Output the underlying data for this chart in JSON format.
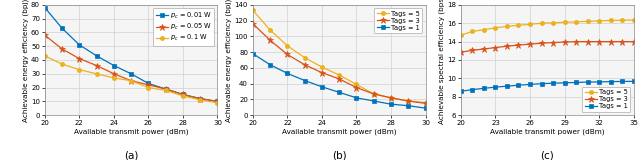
{
  "subplot_a": {
    "xlabel": "Available transmit power (dBm)",
    "ylabel": "Achievable energy efficiency (bpj)",
    "label": "(a)",
    "xlim": [
      20,
      30
    ],
    "ylim": [
      0,
      80
    ],
    "yticks": [
      0,
      10,
      20,
      30,
      40,
      50,
      60,
      70,
      80
    ],
    "xticks": [
      20,
      22,
      24,
      26,
      28,
      30
    ],
    "series": [
      {
        "label": "p_c = 0.01 W",
        "color": "#0072BD",
        "marker": "s",
        "x": [
          20,
          21,
          22,
          23,
          24,
          25,
          26,
          27,
          28,
          29,
          30
        ],
        "y": [
          78,
          63,
          51,
          43,
          36,
          30,
          23,
          19,
          15,
          12,
          10
        ]
      },
      {
        "label": "p_c = 0.05 W",
        "color": "#D95319",
        "marker": "*",
        "x": [
          20,
          21,
          22,
          23,
          24,
          25,
          26,
          27,
          28,
          29,
          30
        ],
        "y": [
          58,
          48,
          41,
          36,
          30,
          25,
          22,
          19,
          15,
          12,
          10
        ]
      },
      {
        "label": "p_c = 0.1 W",
        "color": "#EDB120",
        "marker": "o",
        "x": [
          20,
          21,
          22,
          23,
          24,
          25,
          26,
          27,
          28,
          29,
          30
        ],
        "y": [
          43,
          37,
          33,
          30,
          27,
          25,
          20,
          18,
          14,
          11,
          9
        ]
      }
    ]
  },
  "subplot_b": {
    "xlabel": "Available transmit power (dBm)",
    "ylabel": "Achievable energy efficiency (bpj)",
    "label": "(b)",
    "xlim": [
      20,
      30
    ],
    "ylim": [
      0,
      140
    ],
    "yticks": [
      0,
      20,
      40,
      60,
      80,
      100,
      120,
      140
    ],
    "xticks": [
      20,
      22,
      24,
      26,
      28,
      30
    ],
    "series": [
      {
        "label": "Tags = 5",
        "color": "#EDB120",
        "marker": "o",
        "x": [
          20,
          21,
          22,
          23,
          24,
          25,
          26,
          27,
          28,
          29,
          30
        ],
        "y": [
          133,
          108,
          88,
          73,
          61,
          51,
          39,
          27,
          22,
          18,
          16
        ]
      },
      {
        "label": "Tags = 3",
        "color": "#D95319",
        "marker": "*",
        "x": [
          20,
          21,
          22,
          23,
          24,
          25,
          26,
          27,
          28,
          29,
          30
        ],
        "y": [
          116,
          95,
          77,
          64,
          54,
          46,
          35,
          27,
          22,
          18,
          15
        ]
      },
      {
        "label": "Tags = 1",
        "color": "#0072BD",
        "marker": "s",
        "x": [
          20,
          21,
          22,
          23,
          24,
          25,
          26,
          27,
          28,
          29,
          30
        ],
        "y": [
          78,
          64,
          53,
          44,
          36,
          29,
          22,
          18,
          14,
          12,
          9
        ]
      }
    ]
  },
  "subplot_c": {
    "xlabel": "Available transmit power (dBm)",
    "ylabel": "Achievable spectral efficiency (bps)",
    "label": "(c)",
    "xlim": [
      20,
      35
    ],
    "ylim": [
      6,
      18
    ],
    "yticks": [
      6,
      8,
      10,
      12,
      14,
      16,
      18
    ],
    "xticks": [
      20,
      23,
      26,
      29,
      32,
      35
    ],
    "series": [
      {
        "label": "Tags = 5",
        "color": "#EDB120",
        "marker": "o",
        "x": [
          20,
          21,
          22,
          23,
          24,
          25,
          26,
          27,
          28,
          29,
          30,
          31,
          32,
          33,
          34,
          35
        ],
        "y": [
          14.7,
          15.1,
          15.3,
          15.5,
          15.65,
          15.78,
          15.88,
          16.0,
          16.05,
          16.1,
          16.15,
          16.2,
          16.25,
          16.3,
          16.32,
          16.35
        ]
      },
      {
        "label": "Tags = 3",
        "color": "#D95319",
        "marker": "*",
        "x": [
          20,
          21,
          22,
          23,
          24,
          25,
          26,
          27,
          28,
          29,
          30,
          31,
          32,
          33,
          34,
          35
        ],
        "y": [
          12.85,
          13.05,
          13.2,
          13.35,
          13.5,
          13.62,
          13.72,
          13.82,
          13.9,
          13.95,
          14.0,
          14.0,
          14.0,
          14.0,
          14.0,
          14.0
        ]
      },
      {
        "label": "Tags = 1",
        "color": "#0072BD",
        "marker": "s",
        "x": [
          20,
          21,
          22,
          23,
          24,
          25,
          26,
          27,
          28,
          29,
          30,
          31,
          32,
          33,
          34,
          35
        ],
        "y": [
          8.6,
          8.78,
          8.92,
          9.05,
          9.16,
          9.26,
          9.35,
          9.42,
          9.48,
          9.52,
          9.56,
          9.6,
          9.62,
          9.65,
          9.67,
          9.68
        ]
      }
    ]
  },
  "bg_color": "#ffffff",
  "axes_bg": "#f5f5f5"
}
